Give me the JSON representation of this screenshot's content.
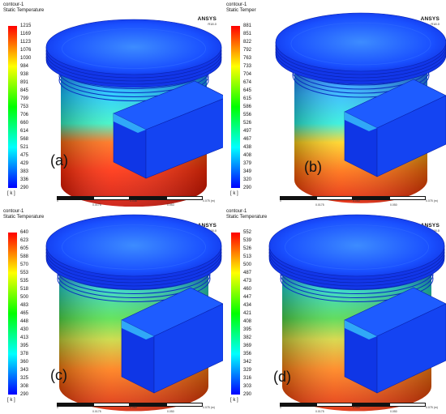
{
  "panels": [
    {
      "header": [
        "contour-1",
        "Static Temperature"
      ],
      "brand": "ANSYS",
      "version": "R18.0",
      "colorbar_ticks": [
        "1215",
        "1169",
        "1123",
        "1076",
        "1030",
        "984",
        "938",
        "891",
        "845",
        "799",
        "753",
        "706",
        "660",
        "614",
        "568",
        "521",
        "475",
        "429",
        "383",
        "336",
        "290"
      ],
      "unit": "[ k ]",
      "label": "(a)",
      "scale_labels": [
        "0",
        "0.038",
        "0.075 (m)",
        "0.0175",
        "0.053"
      ]
    },
    {
      "header": [
        "contour-1",
        "Static Temper"
      ],
      "brand": "ANSYS",
      "version": "R18.0",
      "colorbar_ticks": [
        "881",
        "851",
        "822",
        "792",
        "763",
        "733",
        "704",
        "674",
        "645",
        "615",
        "586",
        "556",
        "526",
        "497",
        "467",
        "438",
        "408",
        "379",
        "349",
        "320",
        "290"
      ],
      "unit": "[ k ]",
      "label": "(b)",
      "scale_labels": [
        "0",
        "0.050",
        "0.075 (m)",
        "0.0175",
        "0.050"
      ]
    },
    {
      "header": [
        "contour-1",
        "Static Temperature"
      ],
      "brand": "ANSYS",
      "version": "R18.0",
      "colorbar_ticks": [
        "640",
        "623",
        "605",
        "588",
        "570",
        "553",
        "535",
        "518",
        "500",
        "483",
        "465",
        "448",
        "430",
        "413",
        "395",
        "378",
        "360",
        "343",
        "325",
        "308",
        "290"
      ],
      "unit": "[ k ]",
      "label": "(c)",
      "scale_labels": [
        "0",
        "0.050",
        "0.075 (m)",
        "0.0175",
        "0.050"
      ]
    },
    {
      "header": [
        "contour-1",
        "Static Temperature"
      ],
      "brand": "ANSYS",
      "version": "R18.0",
      "colorbar_ticks": [
        "552",
        "539",
        "526",
        "513",
        "500",
        "487",
        "473",
        "460",
        "447",
        "434",
        "421",
        "408",
        "395",
        "382",
        "369",
        "356",
        "342",
        "329",
        "316",
        "303",
        "290"
      ],
      "unit": "[ k ]",
      "label": "(d)",
      "scale_labels": [
        "0",
        "0.050",
        "0.075 (m)",
        "0.0175",
        "0.050"
      ]
    }
  ],
  "colors": {
    "colormap": [
      "#0000ff",
      "#0040ff",
      "#0080ff",
      "#00c0ff",
      "#00ffff",
      "#00ffc0",
      "#00ff80",
      "#00ff40",
      "#00ff00",
      "#40ff00",
      "#80ff00",
      "#c0ff00",
      "#ffff00",
      "#ffc000",
      "#ff8000",
      "#ff4000",
      "#ff0000"
    ],
    "scale_bar": [
      "#111111",
      "#ffffff"
    ]
  },
  "icons": [
    "ansys-logo"
  ]
}
